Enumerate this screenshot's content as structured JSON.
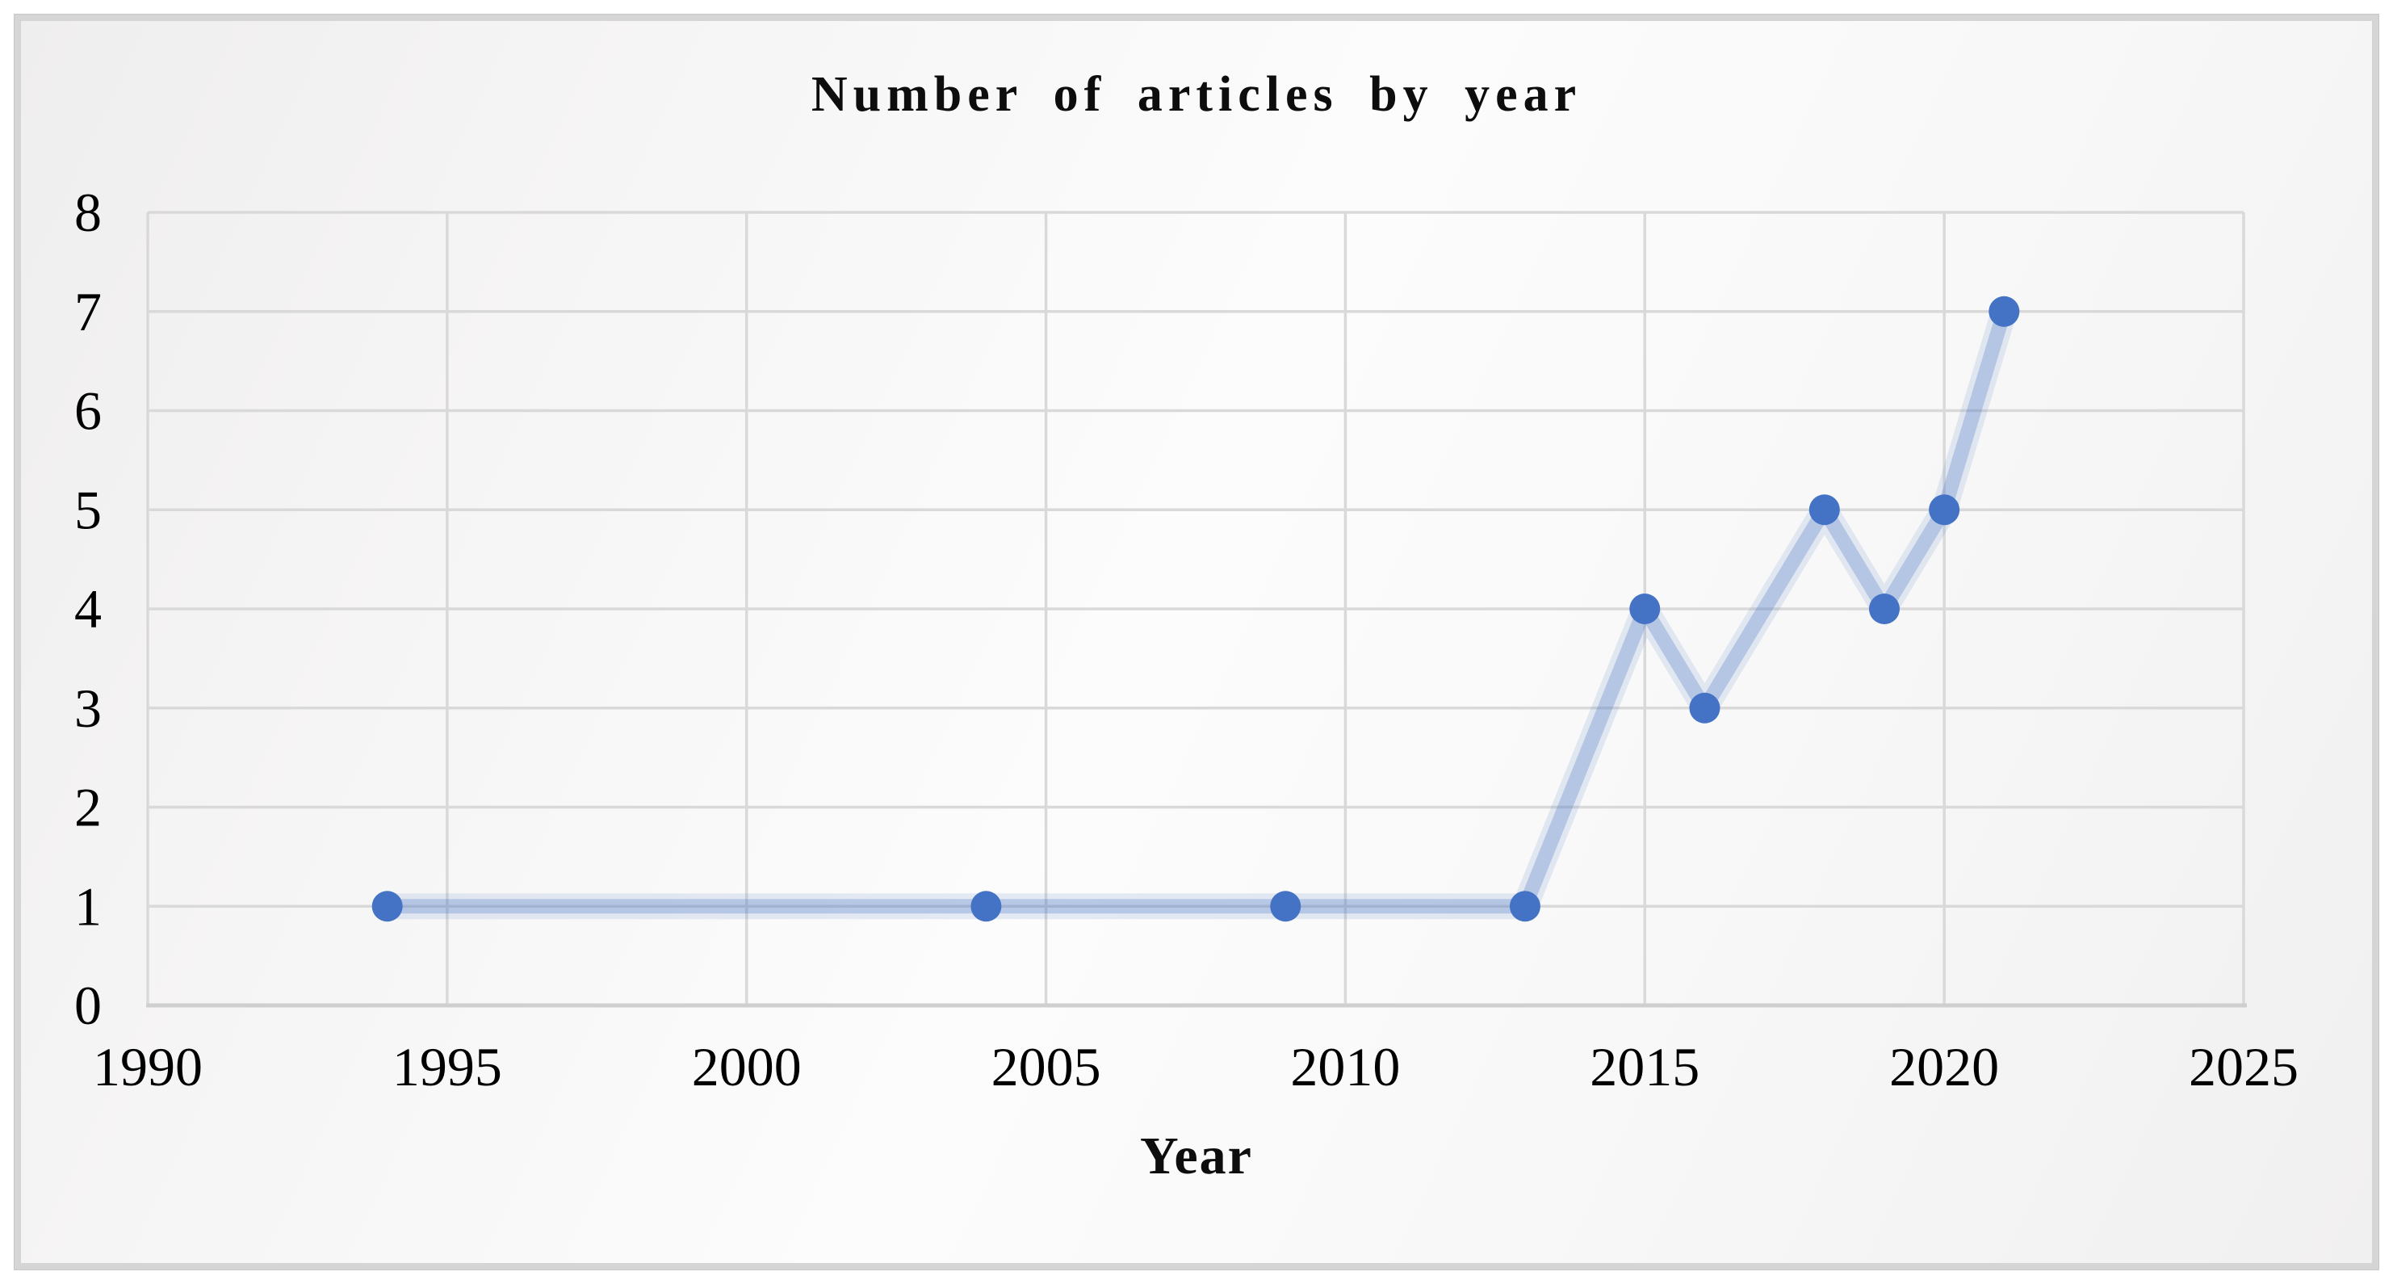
{
  "figure": {
    "background_color": "#ffffff",
    "frame_border_color": "#d5d5d5",
    "canvas_gradient_light": "#fcfcfc",
    "canvas_gradient_dark": "#efeeee"
  },
  "chart_data": {
    "type": "line",
    "title": "Number of articles by year",
    "xlabel": "Year",
    "ylabel": "",
    "x": [
      1994,
      2004,
      2009,
      2013,
      2015,
      2016,
      2018,
      2019,
      2020,
      2021
    ],
    "y": [
      1,
      1,
      1,
      1,
      4,
      3,
      5,
      4,
      5,
      7
    ],
    "xlim": [
      1990,
      2025
    ],
    "ylim": [
      0,
      8
    ],
    "x_ticks": [
      1990,
      1995,
      2000,
      2005,
      2010,
      2015,
      2020,
      2025
    ],
    "y_ticks": [
      0,
      1,
      2,
      3,
      4,
      5,
      6,
      7,
      8
    ],
    "grid": true,
    "legend": "none",
    "marker_style": "circle",
    "colors": {
      "marker": "#4472C4",
      "line_halo": "rgba(68,114,196,0.13)",
      "line": "rgba(68,114,196,0.28)",
      "gridline": "#d9d9d9",
      "axis_line": "#cfcfcf",
      "tick_text": "#000000"
    }
  }
}
